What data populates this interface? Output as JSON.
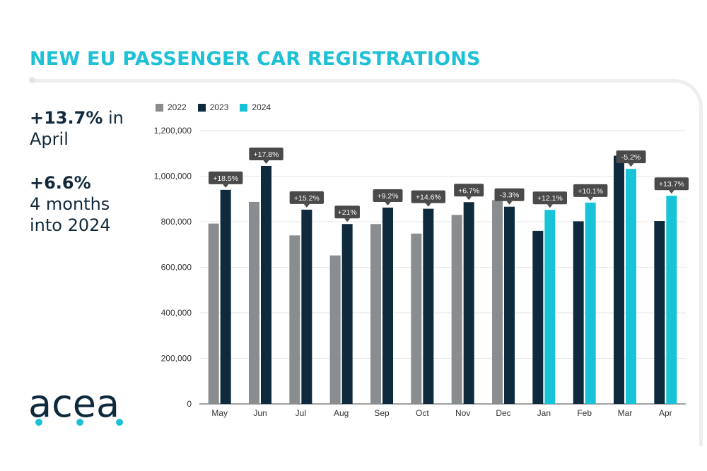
{
  "header": {
    "title": "NEW EU PASSENGER CAR REGISTRATIONS"
  },
  "kpis": [
    {
      "value": "+13.7%",
      "text": " in",
      "line2": "April"
    },
    {
      "value": "+6.6%",
      "text": "",
      "line2": "4 months",
      "line3": "into 2024"
    }
  ],
  "logo": {
    "text": "acea"
  },
  "colors": {
    "y2022": "#8a8d8f",
    "y2023": "#0e2a3c",
    "y2024": "#18c3d8",
    "accent": "#1ec0d6",
    "label_bg": "#4a4a4a"
  },
  "chart_data": {
    "type": "bar",
    "title": "NEW EU PASSENGER CAR REGISTRATIONS",
    "xlabel": "",
    "ylabel": "",
    "ylim": [
      0,
      1200000
    ],
    "yticks": [
      0,
      200000,
      400000,
      600000,
      800000,
      1000000,
      1200000
    ],
    "ytick_labels": [
      "0",
      "200,000",
      "400,000",
      "600,000",
      "800,000",
      "1,000,000",
      "1,200,000"
    ],
    "grid": true,
    "legend_position": "top-left",
    "categories": [
      "May",
      "Jun",
      "Jul",
      "Aug",
      "Sep",
      "Oct",
      "Nov",
      "Dec",
      "Jan",
      "Feb",
      "Mar",
      "Apr"
    ],
    "series": [
      {
        "name": "2022",
        "values": [
          792000,
          887000,
          740000,
          652000,
          790000,
          748000,
          830000,
          895000,
          null,
          null,
          null,
          null
        ]
      },
      {
        "name": "2023",
        "values": [
          940000,
          1045000,
          853000,
          790000,
          862000,
          857000,
          886000,
          866000,
          760000,
          802000,
          1090000,
          803000
        ]
      },
      {
        "name": "2024",
        "values": [
          null,
          null,
          null,
          null,
          null,
          null,
          null,
          null,
          852000,
          884000,
          1032000,
          914000
        ]
      }
    ],
    "annotations": [
      "+18.5%",
      "+17.8%",
      "+15.2%",
      "+21%",
      "+9.2%",
      "+14.6%",
      "+6.7%",
      "-3.3%",
      "+12.1%",
      "+10.1%",
      "-5.2%",
      "+13.7%"
    ]
  }
}
